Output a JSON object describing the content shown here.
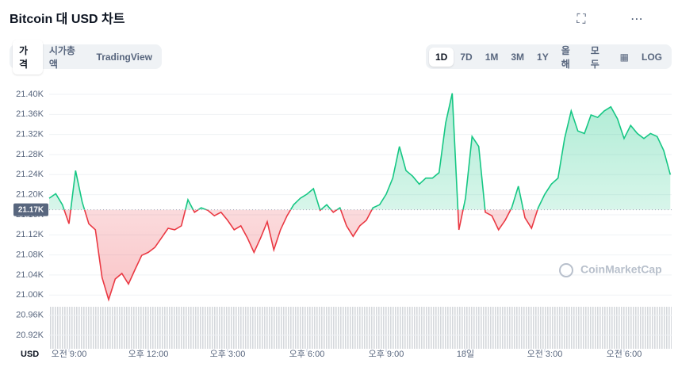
{
  "header": {
    "title": "Bitcoin 대 USD 차트"
  },
  "toolbar": {
    "tabs": [
      "가격",
      "시가총액",
      "TradingView"
    ],
    "selected_tab": 0,
    "ranges": [
      "1D",
      "7D",
      "1M",
      "3M",
      "1Y",
      "올해",
      "모두"
    ],
    "selected_range": 0,
    "log": "LOG"
  },
  "chart_data": {
    "type": "line",
    "x": [
      8.25,
      8.5,
      8.75,
      9,
      9.25,
      9.5,
      9.75,
      10,
      10.25,
      10.5,
      10.75,
      11,
      11.25,
      11.5,
      11.75,
      12,
      12.25,
      12.5,
      12.75,
      13,
      13.25,
      13.5,
      13.75,
      14,
      14.25,
      14.5,
      14.75,
      15,
      15.25,
      15.5,
      15.75,
      16,
      16.25,
      16.5,
      16.75,
      17,
      17.25,
      17.5,
      17.75,
      18,
      18.25,
      18.5,
      18.75,
      19,
      19.25,
      19.5,
      19.75,
      20,
      20.25,
      20.5,
      20.75,
      21,
      21.25,
      21.5,
      21.75,
      22,
      22.25,
      22.5,
      22.75,
      23,
      23.25,
      23.5,
      23.75,
      24,
      24.25,
      24.5,
      24.75,
      25,
      25.25,
      25.5,
      25.75,
      26,
      26.25,
      26.5,
      26.75,
      27,
      27.25,
      27.5,
      27.75,
      28,
      28.25,
      28.5,
      28.75,
      29,
      29.25,
      29.5,
      29.75,
      30,
      30.25,
      30.5,
      30.75,
      31,
      31.25,
      31.5,
      31.75
    ],
    "series": [
      {
        "name": "Bitcoin",
        "color": "#16c784",
        "down_color": "#ea3943",
        "values": [
          21193,
          21202,
          21180,
          21142,
          21248,
          21185,
          21142,
          21130,
          21035,
          20991,
          21032,
          21043,
          21022,
          21051,
          21079,
          21085,
          21095,
          21114,
          21133,
          21130,
          21138,
          21190,
          21165,
          21174,
          21169,
          21158,
          21165,
          21149,
          21130,
          21138,
          21114,
          21085,
          21114,
          21146,
          21090,
          21130,
          21158,
          21180,
          21193,
          21201,
          21212,
          21169,
          21180,
          21165,
          21174,
          21138,
          21117,
          21138,
          21149,
          21174,
          21180,
          21201,
          21233,
          21296,
          21248,
          21237,
          21221,
          21233,
          21233,
          21244,
          21343,
          21402,
          21130,
          21193,
          21316,
          21296,
          21165,
          21158,
          21130,
          21149,
          21174,
          21217,
          21154,
          21133,
          21174,
          21201,
          21221,
          21233,
          21312,
          21367,
          21327,
          21322,
          21359,
          21354,
          21367,
          21375,
          21351,
          21312,
          21338,
          21322,
          21312,
          21322,
          21316,
          21288,
          21240
        ]
      }
    ],
    "baseline": {
      "value": 21170,
      "label": "21.17K"
    },
    "xlim": [
      8.25,
      31.8
    ],
    "xticks": [
      {
        "value": 9,
        "label": "오전 9:00"
      },
      {
        "value": 12,
        "label": "오후 12:00"
      },
      {
        "value": 15,
        "label": "오후 3:00"
      },
      {
        "value": 18,
        "label": "오후 6:00"
      },
      {
        "value": 21,
        "label": "오후 9:00"
      },
      {
        "value": 24,
        "label": "18일"
      },
      {
        "value": 27,
        "label": "오전 3:00"
      },
      {
        "value": 30,
        "label": "오전 6:00"
      }
    ],
    "ylim": [
      20893,
      21430
    ],
    "yticks": [
      {
        "value": 20920,
        "label": "20.92K"
      },
      {
        "value": 20960,
        "label": "20.96K"
      },
      {
        "value": 21000,
        "label": "21.00K"
      },
      {
        "value": 21040,
        "label": "21.04K"
      },
      {
        "value": 21080,
        "label": "21.08K"
      },
      {
        "value": 21120,
        "label": "21.12K"
      },
      {
        "value": 21160,
        "label": "21.16K"
      },
      {
        "value": 21200,
        "label": "21.20K"
      },
      {
        "value": 21240,
        "label": "21.24K"
      },
      {
        "value": 21280,
        "label": "21.28K"
      },
      {
        "value": 21320,
        "label": "21.32K"
      },
      {
        "value": 21360,
        "label": "21.36K"
      },
      {
        "value": 21400,
        "label": "21.40K"
      }
    ],
    "y_unit": "USD",
    "watermark": "CoinMarketCap",
    "grid": true
  }
}
